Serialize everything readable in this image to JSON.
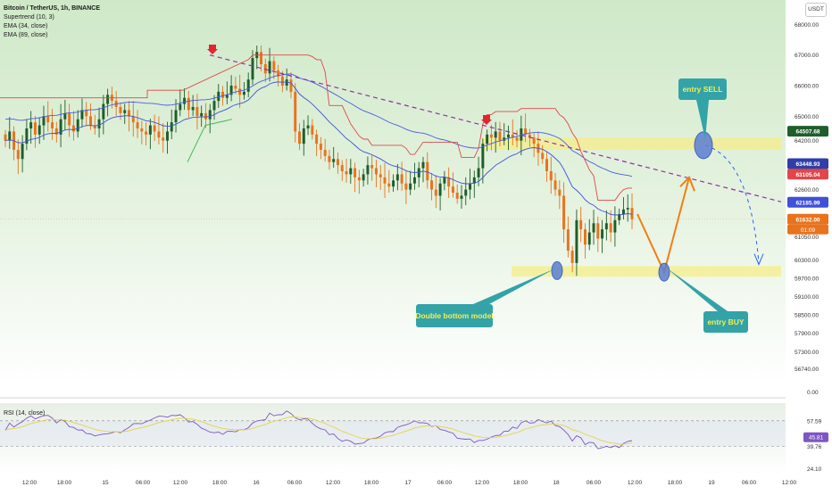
{
  "legend": {
    "symbol": "Bitcoin / TetherUS, 1h, BINANCE",
    "ind1": "Supertrend (10, 3)",
    "ind2": "EMA (34, close)",
    "ind3": "EMA (89, close)"
  },
  "unit_label": "USDT",
  "rsi_label": "RSI (14, close)",
  "colors": {
    "up": "#1e5e2c",
    "down": "#e8731d",
    "ema34": "#3f51d6",
    "ema89": "#4a5be0",
    "supertrend_down": "#e0474b",
    "supertrend_up": "#3bb34a",
    "trendline": "#9c27b0",
    "zone": "#f6ee8a",
    "callout": "#33a3a8",
    "callout_text": "#f7ee52",
    "arrow": "#f07f12",
    "projection": "#2962ff",
    "signal": "#e2262f"
  },
  "chart_data": {
    "type": "candlestick",
    "ylim": [
      56200,
      68800
    ],
    "y_ticks": [
      "68000.00",
      "67000.00",
      "66000.00",
      "65000.00",
      "64200.00",
      "62600.00",
      "61050.00",
      "60300.00",
      "59700.00",
      "59100.00",
      "58500.00",
      "57900.00",
      "57300.00",
      "56740.00"
    ],
    "x_ticks": [
      "12:00",
      "18:00",
      "15",
      "06:00",
      "12:00",
      "18:00",
      "16",
      "06:00",
      "12:00",
      "18:00",
      "17",
      "06:00",
      "12:00",
      "18:00",
      "18",
      "06:00",
      "12:00",
      "18:00",
      "19",
      "06:00",
      "12:00"
    ],
    "price_labels": [
      {
        "text": "64507.68",
        "value": 64507.68,
        "color": "#1e5e2c"
      },
      {
        "text": "63448.93",
        "value": 63448.93,
        "color": "#2f3fa7"
      },
      {
        "text": "63105.04",
        "value": 63105.04,
        "color": "#e0474b"
      },
      {
        "text": "62185.99",
        "value": 62185.99,
        "color": "#3f51d6"
      },
      {
        "text": "61632.00",
        "value": 61632.0,
        "color": "#e8731d"
      }
    ],
    "countdown": "01:09",
    "zones": [
      {
        "name": "resistance",
        "low": 63900,
        "high": 64300
      },
      {
        "name": "support",
        "low": 59750,
        "high": 60100
      }
    ],
    "annotations": {
      "entry_sell": "entry SELL",
      "entry_buy": "entry BUY",
      "double_bottom": "Double bottom model"
    },
    "rsi": {
      "ylim": [
        20,
        70
      ],
      "ticks": [
        "57.59",
        "39.76",
        "24.10"
      ],
      "current": "45.81",
      "upper_band": 57.59,
      "lower_band": 39.76,
      "top_divider": "0.00"
    }
  }
}
